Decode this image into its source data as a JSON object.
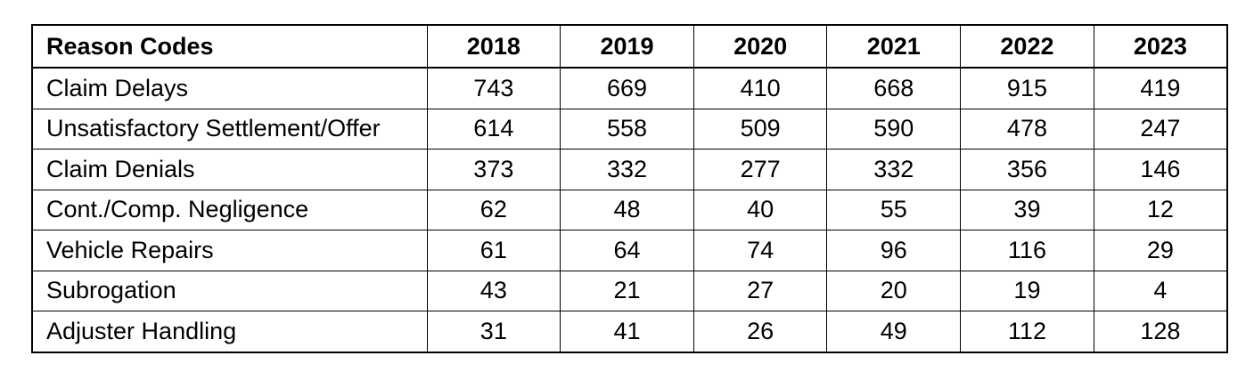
{
  "chart_data": {
    "type": "table",
    "header": "Reason Codes",
    "columns": [
      "2018",
      "2019",
      "2020",
      "2021",
      "2022",
      "2023"
    ],
    "rows": [
      {
        "label": "Claim Delays",
        "values": [
          743,
          669,
          410,
          668,
          915,
          419
        ]
      },
      {
        "label": "Unsatisfactory Settlement/Offer",
        "values": [
          614,
          558,
          509,
          590,
          478,
          247
        ]
      },
      {
        "label": "Claim Denials",
        "values": [
          373,
          332,
          277,
          332,
          356,
          146
        ]
      },
      {
        "label": "Cont./Comp. Negligence",
        "values": [
          62,
          48,
          40,
          55,
          39,
          12
        ]
      },
      {
        "label": "Vehicle Repairs",
        "values": [
          61,
          64,
          74,
          96,
          116,
          29
        ]
      },
      {
        "label": "Subrogation",
        "values": [
          43,
          21,
          27,
          20,
          19,
          4
        ]
      },
      {
        "label": "Adjuster Handling",
        "values": [
          31,
          41,
          26,
          49,
          112,
          128
        ]
      }
    ]
  }
}
